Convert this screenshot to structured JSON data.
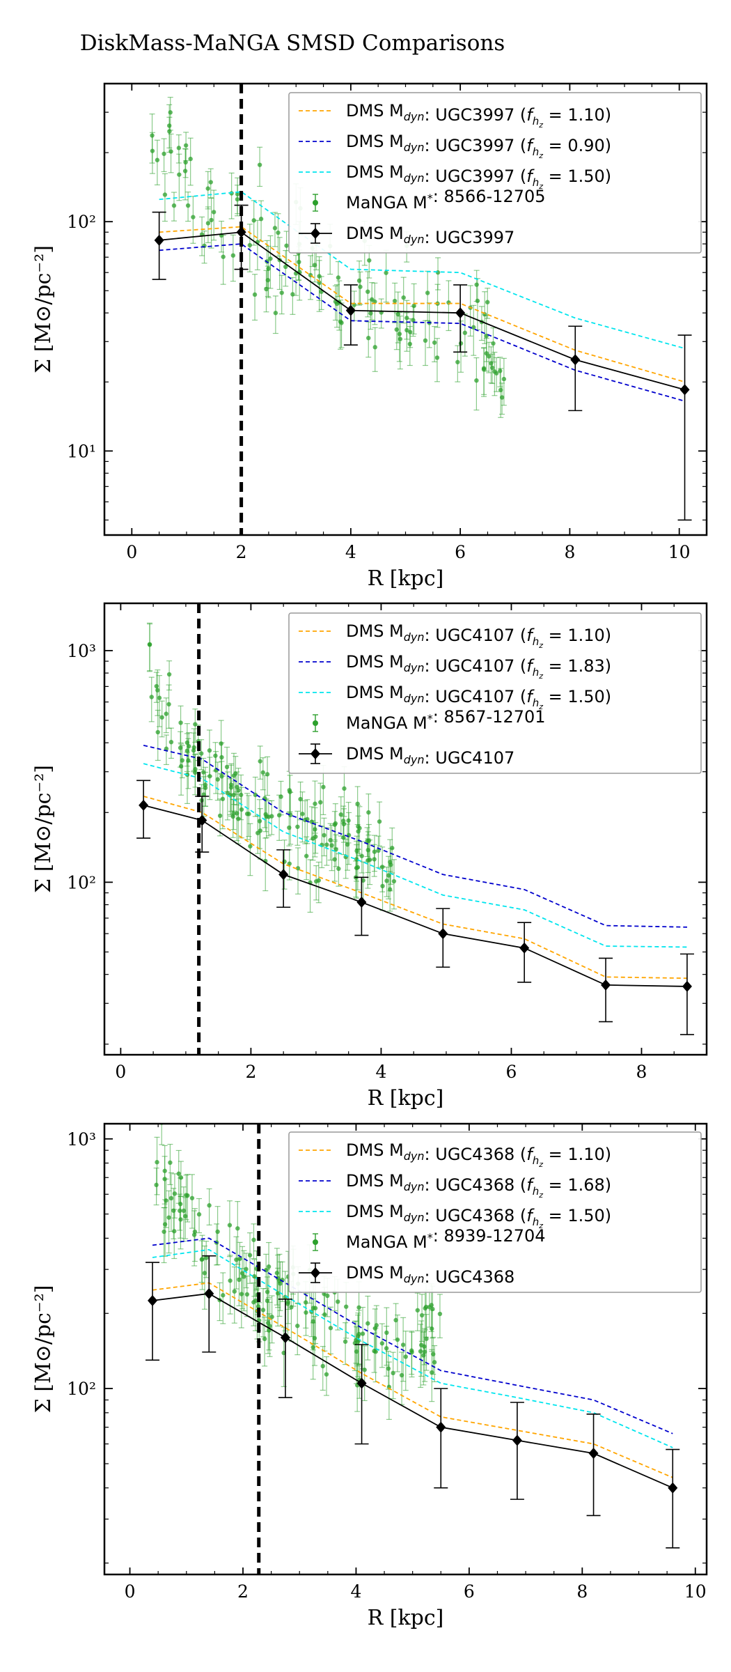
{
  "figure_title": "DiskMass-MaNGA SMSD Comparisons",
  "colors": {
    "f110": "#ffa500",
    "fhigh": "#0000cd",
    "f150": "#00e5ee",
    "manga": "#2ca02c",
    "dms": "#000000"
  },
  "chart_data": [
    {
      "type": "line",
      "galaxy": "UGC3997",
      "xlabel": "R [kpc]",
      "ylabel": "Σ [M⊙/pc⁻²]",
      "xlim": [
        -0.5,
        10.5
      ],
      "ylim_log": [
        4.3,
        400
      ],
      "xticks": [
        0,
        2,
        4,
        6,
        8,
        10
      ],
      "yticks": [
        10,
        100
      ],
      "ytick_labels": [
        "10¹",
        "10²"
      ],
      "vline_x": 2.0,
      "legend": [
        "DMS Mdyn: UGC3997 (fhz = 1.10)",
        "DMS Mdyn: UGC3997 (fhz = 0.90)",
        "DMS Mdyn: UGC3997 (fhz = 1.50)",
        "MaNGA M*: 8566-12705",
        "DMS Mdyn: UGC3997"
      ],
      "legend_parts": [
        {
          "label": "DMS M",
          "sub": "dyn",
          "gal": ": UGC3997 (",
          "fpre": "f",
          "fsub": "h",
          "fsub2": "z",
          "fval": " = 1.10)"
        },
        {
          "label": "DMS M",
          "sub": "dyn",
          "gal": ": UGC3997 (",
          "fpre": "f",
          "fsub": "h",
          "fsub2": "z",
          "fval": " = 0.90)"
        },
        {
          "label": "DMS M",
          "sub": "dyn",
          "gal": ": UGC3997 (",
          "fpre": "f",
          "fsub": "h",
          "fsub2": "z",
          "fval": " = 1.50)"
        },
        {
          "label": "MaNGA M",
          "sup": "*",
          "gal": ": 8566-12705"
        },
        {
          "label": "DMS M",
          "sub": "dyn",
          "gal": ": UGC3997"
        }
      ],
      "x": [
        0.5,
        2.0,
        4.0,
        6.0,
        8.1,
        10.1
      ],
      "series": [
        {
          "name": "DMS Mdyn: UGC3997",
          "values": [
            83,
            90,
            41,
            40,
            25,
            18.5
          ],
          "yerr": [
            27,
            28,
            12,
            13,
            10,
            13.5
          ]
        },
        {
          "name": "fhz = 1.10",
          "values": [
            90,
            95,
            44,
            44,
            27.5,
            20
          ]
        },
        {
          "name": "fhz = 0.90",
          "values": [
            75,
            80,
            37,
            36,
            22.5,
            16.5
          ]
        },
        {
          "name": "fhz = 1.50",
          "values": [
            125,
            135,
            62,
            60,
            38,
            28
          ]
        }
      ],
      "manga": {
        "x_start": 0.35,
        "x_end": 6.9,
        "n": 130,
        "curve_x": [
          0.35,
          1.0,
          2.0,
          3.0,
          4.0,
          5.0,
          6.0,
          6.9
        ],
        "curve_y": [
          190,
          150,
          95,
          68,
          52,
          40,
          32,
          24
        ],
        "scatter": 0.18,
        "rel_err": 0.2
      }
    },
    {
      "type": "line",
      "galaxy": "UGC4107",
      "xlabel": "R [kpc]",
      "ylabel": "Σ [M⊙/pc⁻²]",
      "xlim": [
        -0.25,
        9.0
      ],
      "ylim_log": [
        18,
        1600
      ],
      "xticks": [
        0,
        2,
        4,
        6,
        8
      ],
      "yticks": [
        100,
        1000
      ],
      "ytick_labels": [
        "10²",
        "10³"
      ],
      "vline_x": 1.2,
      "legend": [
        "DMS Mdyn: UGC4107 (fhz = 1.10)",
        "DMS Mdyn: UGC4107 (fhz = 1.83)",
        "DMS Mdyn: UGC4107 (fhz = 1.50)",
        "MaNGA M*: 8567-12701",
        "DMS Mdyn: UGC4107"
      ],
      "legend_parts": [
        {
          "label": "DMS M",
          "sub": "dyn",
          "gal": ": UGC4107 (",
          "fpre": "f",
          "fsub": "h",
          "fsub2": "z",
          "fval": " = 1.10)"
        },
        {
          "label": "DMS M",
          "sub": "dyn",
          "gal": ": UGC4107 (",
          "fpre": "f",
          "fsub": "h",
          "fsub2": "z",
          "fval": " = 1.83)"
        },
        {
          "label": "DMS M",
          "sub": "dyn",
          "gal": ": UGC4107 (",
          "fpre": "f",
          "fsub": "h",
          "fsub2": "z",
          "fval": " = 1.50)"
        },
        {
          "label": "MaNGA M",
          "sup": "*",
          "gal": ": 8567-12701"
        },
        {
          "label": "DMS M",
          "sub": "dyn",
          "gal": ": UGC4107"
        }
      ],
      "x": [
        0.35,
        1.25,
        2.5,
        3.7,
        4.95,
        6.2,
        7.45,
        8.7
      ],
      "series": [
        {
          "name": "DMS Mdyn: UGC4107",
          "values": [
            215,
            185,
            108,
            82,
            60,
            52,
            36,
            35.5
          ],
          "yerr": [
            60,
            50,
            30,
            23,
            17,
            15,
            11,
            13.5
          ]
        },
        {
          "name": "fhz = 1.10",
          "values": [
            235,
            200,
            120,
            90,
            66,
            57,
            39,
            38.5
          ]
        },
        {
          "name": "fhz = 1.83",
          "values": [
            390,
            340,
            200,
            150,
            108,
            93,
            65,
            64
          ]
        },
        {
          "name": "fhz = 1.50",
          "values": [
            325,
            280,
            165,
            123,
            88,
            76,
            53,
            52.5
          ]
        }
      ],
      "manga": {
        "x_start": 0.4,
        "x_end": 4.2,
        "n": 150,
        "curve_x": [
          0.4,
          0.8,
          1.2,
          1.6,
          2.0,
          2.5,
          3.0,
          3.5,
          4.2
        ],
        "curve_y": [
          900,
          450,
          320,
          270,
          230,
          190,
          160,
          140,
          120
        ],
        "scatter": 0.14,
        "rel_err": 0.2
      }
    },
    {
      "type": "line",
      "galaxy": "UGC4368",
      "xlabel": "R [kpc]",
      "ylabel": "Σ [M⊙/pc⁻²]",
      "xlim": [
        -0.45,
        10.2
      ],
      "ylim_log": [
        18,
        1150
      ],
      "xticks": [
        0,
        2,
        4,
        6,
        8,
        10
      ],
      "yticks": [
        100,
        1000
      ],
      "ytick_labels": [
        "10²",
        "10³"
      ],
      "vline_x": 2.28,
      "legend": [
        "DMS Mdyn: UGC4368 (fhz = 1.10)",
        "DMS Mdyn: UGC4368 (fhz = 1.68)",
        "DMS Mdyn: UGC4368 (fhz = 1.50)",
        "MaNGA M*: 8939-12704",
        "DMS Mdyn: UGC4368"
      ],
      "legend_parts": [
        {
          "label": "DMS M",
          "sub": "dyn",
          "gal": ": UGC4368 (",
          "fpre": "f",
          "fsub": "h",
          "fsub2": "z",
          "fval": " = 1.10)"
        },
        {
          "label": "DMS M",
          "sub": "dyn",
          "gal": ": UGC4368 (",
          "fpre": "f",
          "fsub": "h",
          "fsub2": "z",
          "fval": " = 1.68)"
        },
        {
          "label": "DMS M",
          "sub": "dyn",
          "gal": ": UGC4368 (",
          "fpre": "f",
          "fsub": "h",
          "fsub2": "z",
          "fval": " = 1.50)"
        },
        {
          "label": "MaNGA M",
          "sup": "*",
          "gal": ": 8939-12704"
        },
        {
          "label": "DMS M",
          "sub": "dyn",
          "gal": ": UGC4368"
        }
      ],
      "x": [
        0.4,
        1.4,
        2.75,
        4.1,
        5.5,
        6.85,
        8.2,
        9.6
      ],
      "series": [
        {
          "name": "DMS Mdyn: UGC4368",
          "values": [
            225,
            240,
            160,
            105,
            70,
            62,
            55,
            40
          ],
          "yerr": [
            95,
            100,
            68,
            45,
            30,
            26,
            24,
            17
          ]
        },
        {
          "name": "fhz = 1.10",
          "values": [
            248,
            265,
            175,
            115,
            77,
            68,
            60,
            44
          ]
        },
        {
          "name": "fhz = 1.68",
          "values": [
            375,
            400,
            265,
            175,
            118,
            103,
            90,
            66
          ]
        },
        {
          "name": "fhz = 1.50",
          "values": [
            335,
            360,
            235,
            155,
            105,
            92,
            80,
            58
          ]
        }
      ],
      "manga": {
        "x_start": 0.45,
        "x_end": 5.5,
        "n": 150,
        "curve_x": [
          0.45,
          0.8,
          1.2,
          1.6,
          2.0,
          2.5,
          3.0,
          3.5,
          4.0,
          4.5,
          5.5
        ],
        "curve_y": [
          700,
          550,
          430,
          340,
          280,
          230,
          205,
          185,
          170,
          160,
          150
        ],
        "scatter": 0.13,
        "rel_err": 0.22
      }
    }
  ]
}
